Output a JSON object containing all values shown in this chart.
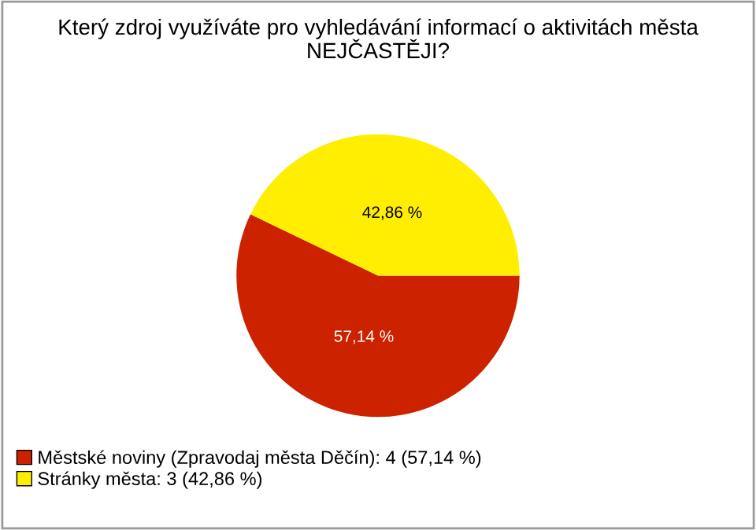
{
  "chart_data": {
    "type": "pie",
    "title": "Který zdroj využíváte pro vyhledávání informací o aktivitách města NEJČASTĚJI?",
    "categories": [
      "Městské noviny (Zpravodaj města Děčín): 4 (57,14 %)",
      "Stránky města: 3 (42,86 %)"
    ],
    "values": [
      57.14,
      42.86
    ],
    "colors": [
      "#cc2200",
      "#ffee00"
    ],
    "value_labels": [
      "57,14 %",
      "42,86 %"
    ],
    "legend": "bottom left"
  }
}
